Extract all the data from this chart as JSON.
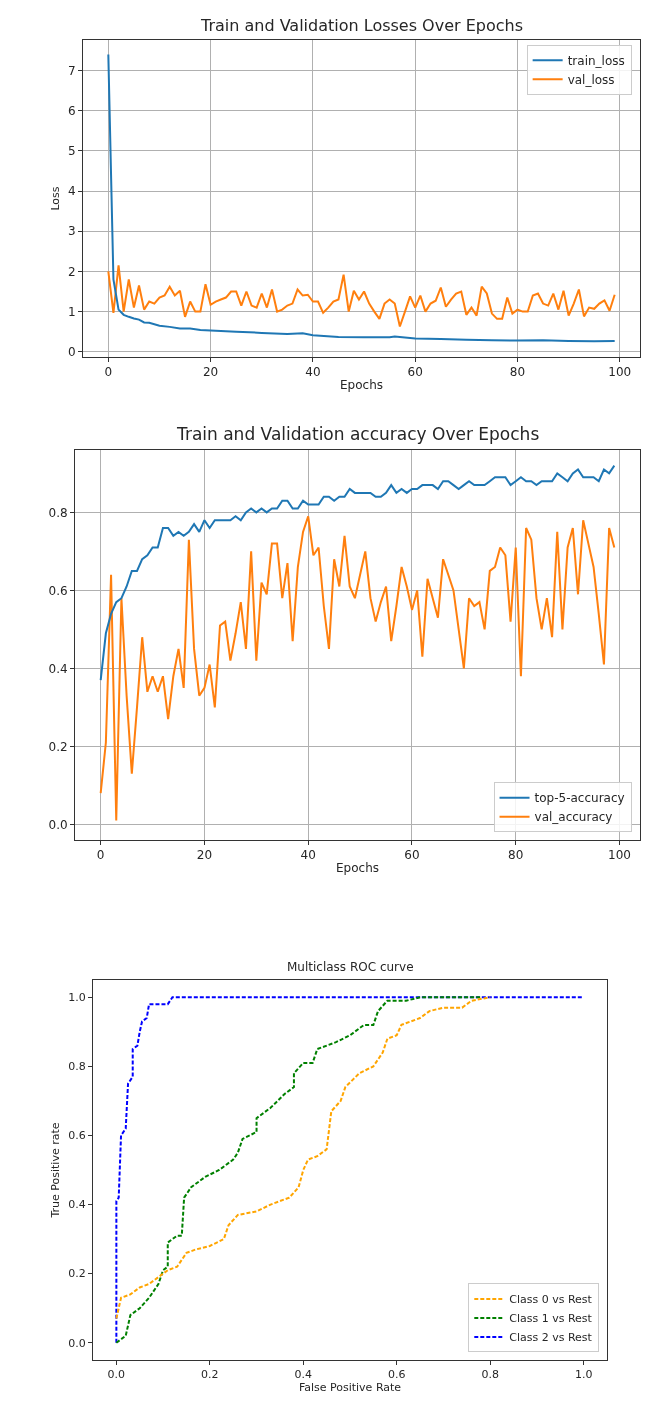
{
  "chart_data": [
    {
      "type": "line",
      "title": "Train and Validation Losses Over Epochs",
      "xlabel": "Epochs",
      "ylabel": "Loss",
      "grid": true,
      "legend": "top right",
      "line_style": "solid",
      "marker": "none",
      "xlim": [
        -4.95,
        103.95
      ],
      "ylim": [
        -0.13,
        7.76
      ],
      "xticks": [
        0,
        20,
        40,
        60,
        80,
        100
      ],
      "yticks": [
        0,
        1,
        2,
        3,
        4,
        5,
        6,
        7
      ],
      "x": [
        0,
        1,
        2,
        3,
        4,
        5,
        6,
        7,
        8,
        9,
        10,
        11,
        12,
        13,
        14,
        15,
        16,
        17,
        18,
        19,
        20,
        21,
        22,
        23,
        24,
        25,
        26,
        27,
        28,
        29,
        30,
        31,
        32,
        33,
        34,
        35,
        36,
        37,
        38,
        39,
        40,
        41,
        42,
        43,
        44,
        45,
        46,
        47,
        48,
        49,
        50,
        51,
        52,
        53,
        54,
        55,
        56,
        57,
        58,
        59,
        60,
        61,
        62,
        63,
        64,
        65,
        66,
        67,
        68,
        69,
        70,
        71,
        72,
        73,
        74,
        75,
        76,
        77,
        78,
        79,
        80,
        81,
        82,
        83,
        84,
        85,
        86,
        87,
        88,
        89,
        90,
        91,
        92,
        93,
        94,
        95,
        96,
        97,
        98,
        99
      ],
      "series": [
        {
          "name": "train_loss",
          "color": "#1f77b4",
          "x": [
            0,
            1,
            2,
            3,
            4,
            5,
            6,
            7,
            8,
            10,
            12,
            14,
            16,
            18,
            20,
            25,
            30,
            35,
            38,
            40,
            45,
            50,
            55,
            56,
            60,
            65,
            70,
            75,
            80,
            85,
            90,
            95,
            99
          ],
          "values": [
            7.4,
            1.8,
            1.05,
            0.92,
            0.87,
            0.83,
            0.8,
            0.73,
            0.72,
            0.65,
            0.62,
            0.58,
            0.58,
            0.54,
            0.53,
            0.5,
            0.47,
            0.44,
            0.46,
            0.41,
            0.37,
            0.36,
            0.36,
            0.38,
            0.33,
            0.32,
            0.3,
            0.29,
            0.28,
            0.29,
            0.27,
            0.26,
            0.27
          ]
        },
        {
          "name": "val_loss",
          "color": "#ff7f0e",
          "values": [
            2.0,
            0.97,
            2.15,
            1.0,
            1.8,
            1.1,
            1.65,
            1.05,
            1.25,
            1.2,
            1.35,
            1.4,
            1.62,
            1.4,
            1.52,
            0.87,
            1.25,
            1.0,
            1.0,
            1.68,
            1.17,
            1.25,
            1.3,
            1.35,
            1.5,
            1.5,
            1.15,
            1.5,
            1.15,
            1.1,
            1.45,
            1.1,
            1.55,
            1.0,
            1.05,
            1.15,
            1.2,
            1.55,
            1.4,
            1.42,
            1.25,
            1.25,
            0.97,
            1.1,
            1.25,
            1.3,
            1.92,
            1.0,
            1.52,
            1.3,
            1.5,
            1.2,
            1.0,
            0.82,
            1.2,
            1.3,
            1.2,
            0.63,
            1.0,
            1.38,
            1.1,
            1.4,
            1.0,
            1.2,
            1.27,
            1.6,
            1.12,
            1.3,
            1.45,
            1.5,
            0.92,
            1.1,
            0.9,
            1.62,
            1.45,
            0.95,
            0.82,
            0.82,
            1.35,
            0.95,
            1.05,
            1.0,
            1.0,
            1.4,
            1.45,
            1.2,
            1.15,
            1.45,
            1.05,
            1.52,
            0.9,
            1.2,
            1.55,
            0.88,
            1.1,
            1.07,
            1.2,
            1.28,
            1.02,
            1.42
          ]
        }
      ]
    },
    {
      "type": "line",
      "title": "Train and Validation accuracy Over Epochs",
      "xlabel": "Epochs",
      "grid": true,
      "legend": "bottom right",
      "line_style": "solid",
      "marker": "none",
      "xlim": [
        -4.95,
        103.95
      ],
      "ylim": [
        -0.04,
        0.96
      ],
      "xticks": [
        0,
        20,
        40,
        60,
        80,
        100
      ],
      "yticks": [
        {
          "value": 0,
          "label": "0.0"
        },
        {
          "value": 0.2,
          "label": "0.2"
        },
        {
          "value": 0.4,
          "label": "0.4"
        },
        {
          "value": 0.6,
          "label": "0.6"
        },
        {
          "value": 0.8,
          "label": "0.8"
        }
      ],
      "x": [
        0,
        1,
        2,
        3,
        4,
        5,
        6,
        7,
        8,
        9,
        10,
        11,
        12,
        13,
        14,
        15,
        16,
        17,
        18,
        19,
        20,
        21,
        22,
        23,
        24,
        25,
        26,
        27,
        28,
        29,
        30,
        31,
        32,
        33,
        34,
        35,
        36,
        37,
        38,
        39,
        40,
        41,
        42,
        43,
        44,
        45,
        46,
        47,
        48,
        49,
        50,
        51,
        52,
        53,
        54,
        55,
        56,
        57,
        58,
        59,
        60,
        61,
        62,
        63,
        64,
        65,
        66,
        67,
        68,
        69,
        70,
        71,
        72,
        73,
        74,
        75,
        76,
        77,
        78,
        79,
        80,
        81,
        82,
        83,
        84,
        85,
        86,
        87,
        88,
        89,
        90,
        91,
        92,
        93,
        94,
        95,
        96,
        97,
        98,
        99
      ],
      "series": [
        {
          "name": "top-5-accuracy",
          "color": "#1f77b4",
          "values": [
            0.37,
            0.49,
            0.54,
            0.57,
            0.58,
            0.61,
            0.65,
            0.65,
            0.68,
            0.69,
            0.71,
            0.71,
            0.76,
            0.76,
            0.74,
            0.75,
            0.74,
            0.75,
            0.77,
            0.75,
            0.78,
            0.76,
            0.78,
            0.78,
            0.78,
            0.78,
            0.79,
            0.78,
            0.8,
            0.81,
            0.8,
            0.81,
            0.8,
            0.81,
            0.81,
            0.83,
            0.83,
            0.81,
            0.81,
            0.83,
            0.82,
            0.82,
            0.82,
            0.84,
            0.84,
            0.83,
            0.84,
            0.84,
            0.86,
            0.85,
            0.85,
            0.85,
            0.85,
            0.84,
            0.84,
            0.85,
            0.87,
            0.85,
            0.86,
            0.85,
            0.86,
            0.86,
            0.87,
            0.87,
            0.87,
            0.86,
            0.88,
            0.88,
            0.87,
            0.86,
            0.87,
            0.88,
            0.87,
            0.87,
            0.87,
            0.88,
            0.89,
            0.89,
            0.89,
            0.87,
            0.88,
            0.89,
            0.88,
            0.88,
            0.87,
            0.88,
            0.88,
            0.88,
            0.9,
            0.89,
            0.88,
            0.9,
            0.91,
            0.89,
            0.89,
            0.89,
            0.88,
            0.91,
            0.9,
            0.92
          ]
        },
        {
          "name": "val_accuracy",
          "color": "#ff7f0e",
          "values": [
            0.08,
            0.21,
            0.64,
            0.01,
            0.58,
            0.33,
            0.13,
            0.3,
            0.48,
            0.34,
            0.38,
            0.34,
            0.38,
            0.27,
            0.38,
            0.45,
            0.35,
            0.73,
            0.45,
            0.33,
            0.35,
            0.41,
            0.3,
            0.51,
            0.52,
            0.42,
            0.49,
            0.57,
            0.45,
            0.7,
            0.42,
            0.62,
            0.59,
            0.72,
            0.72,
            0.58,
            0.67,
            0.47,
            0.66,
            0.75,
            0.79,
            0.69,
            0.71,
            0.56,
            0.45,
            0.68,
            0.61,
            0.74,
            0.61,
            0.58,
            0.64,
            0.7,
            0.58,
            0.52,
            0.57,
            0.61,
            0.47,
            0.56,
            0.66,
            0.61,
            0.55,
            0.6,
            0.43,
            0.63,
            0.58,
            0.53,
            0.68,
            0.64,
            0.6,
            0.5,
            0.4,
            0.58,
            0.56,
            0.57,
            0.5,
            0.65,
            0.66,
            0.71,
            0.69,
            0.52,
            0.71,
            0.38,
            0.76,
            0.73,
            0.58,
            0.5,
            0.58,
            0.48,
            0.75,
            0.5,
            0.71,
            0.76,
            0.59,
            0.78,
            0.72,
            0.66,
            0.54,
            0.41,
            0.76,
            0.71
          ]
        }
      ]
    },
    {
      "type": "line",
      "title": "Multiclass ROC curve",
      "xlabel": "False Positive Rate",
      "ylabel": "True Positive rate",
      "grid": false,
      "legend": "bottom right",
      "line_style": "dashed",
      "marker": "none",
      "xlim": [
        -0.05,
        1.05
      ],
      "ylim": [
        -0.05,
        1.05
      ],
      "xticks": [
        {
          "value": 0,
          "label": "0.0"
        },
        {
          "value": 0.2,
          "label": "0.2"
        },
        {
          "value": 0.4,
          "label": "0.4"
        },
        {
          "value": 0.6,
          "label": "0.6"
        },
        {
          "value": 0.8,
          "label": "0.8"
        },
        {
          "value": 1,
          "label": "1.0"
        }
      ],
      "yticks": [
        {
          "value": 0,
          "label": "0.0"
        },
        {
          "value": 0.2,
          "label": "0.2"
        },
        {
          "value": 0.4,
          "label": "0.4"
        },
        {
          "value": 0.6,
          "label": "0.6"
        },
        {
          "value": 0.8,
          "label": "0.8"
        },
        {
          "value": 1,
          "label": "1.0"
        }
      ],
      "series": [
        {
          "name": "Class 0 vs Rest",
          "color": "#ffa500",
          "x": [
            0,
            0.01,
            0.03,
            0.05,
            0.07,
            0.09,
            0.11,
            0.13,
            0.15,
            0.17,
            0.2,
            0.23,
            0.24,
            0.26,
            0.3,
            0.33,
            0.37,
            0.39,
            0.4,
            0.41,
            0.43,
            0.45,
            0.46,
            0.48,
            0.49,
            0.52,
            0.55,
            0.57,
            0.58,
            0.6,
            0.61,
            0.63,
            0.65,
            0.67,
            0.7,
            0.74,
            0.76,
            0.8
          ],
          "values": [
            0.07,
            0.13,
            0.14,
            0.16,
            0.17,
            0.19,
            0.21,
            0.22,
            0.26,
            0.27,
            0.28,
            0.3,
            0.34,
            0.37,
            0.38,
            0.4,
            0.42,
            0.45,
            0.5,
            0.53,
            0.54,
            0.56,
            0.67,
            0.7,
            0.74,
            0.78,
            0.8,
            0.84,
            0.88,
            0.89,
            0.92,
            0.93,
            0.94,
            0.96,
            0.97,
            0.97,
            0.99,
            1.0
          ]
        },
        {
          "name": "Class 1 vs Rest",
          "color": "#008000",
          "x": [
            0,
            0.02,
            0.03,
            0.05,
            0.07,
            0.09,
            0.1,
            0.11,
            0.11,
            0.13,
            0.14,
            0.145,
            0.16,
            0.19,
            0.22,
            0.25,
            0.26,
            0.27,
            0.3,
            0.3,
            0.33,
            0.36,
            0.38,
            0.38,
            0.4,
            0.42,
            0.43,
            0.47,
            0.5,
            0.53,
            0.55,
            0.56,
            0.58,
            0.62,
            0.65,
            0.78
          ],
          "values": [
            0,
            0.02,
            0.08,
            0.1,
            0.13,
            0.17,
            0.21,
            0.22,
            0.29,
            0.31,
            0.31,
            0.42,
            0.45,
            0.48,
            0.5,
            0.53,
            0.55,
            0.59,
            0.61,
            0.65,
            0.68,
            0.72,
            0.74,
            0.78,
            0.81,
            0.81,
            0.85,
            0.87,
            0.89,
            0.92,
            0.92,
            0.96,
            0.99,
            0.99,
            1.0,
            1.0
          ]
        },
        {
          "name": "Class 2 vs Rest",
          "color": "#0000ff",
          "x": [
            0,
            0,
            0.005,
            0.01,
            0.02,
            0.025,
            0.035,
            0.035,
            0.045,
            0.05,
            0.055,
            0.065,
            0.07,
            0.11,
            0.12,
            1
          ],
          "values": [
            0,
            0.41,
            0.42,
            0.6,
            0.62,
            0.75,
            0.77,
            0.85,
            0.86,
            0.9,
            0.93,
            0.94,
            0.98,
            0.98,
            1.0,
            1.0
          ]
        }
      ]
    }
  ]
}
